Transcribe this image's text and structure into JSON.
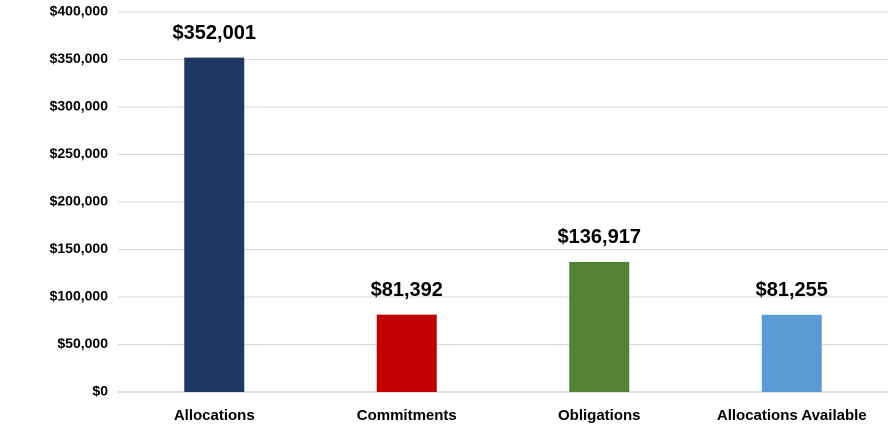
{
  "chart_data": {
    "type": "bar",
    "categories": [
      "Allocations",
      "Commitments",
      "Obligations",
      "Allocations Available"
    ],
    "values": [
      352001,
      81392,
      136917,
      81255
    ],
    "value_labels": [
      "$352,001",
      "$81,392",
      "$136,917",
      "$81,255"
    ],
    "colors": [
      "#1f3864",
      "#c00000",
      "#548235",
      "#5b9bd5"
    ],
    "ylim": [
      0,
      400000
    ],
    "yticks": [
      {
        "value": 0,
        "label": "$0"
      },
      {
        "value": 50000,
        "label": "$50,000"
      },
      {
        "value": 100000,
        "label": "$100,000"
      },
      {
        "value": 150000,
        "label": "$150,000"
      },
      {
        "value": 200000,
        "label": "$200,000"
      },
      {
        "value": 250000,
        "label": "$250,000"
      },
      {
        "value": 300000,
        "label": "$300,000"
      },
      {
        "value": 350000,
        "label": "$350,000"
      },
      {
        "value": 400000,
        "label": "$400,000"
      }
    ],
    "grid": true
  }
}
